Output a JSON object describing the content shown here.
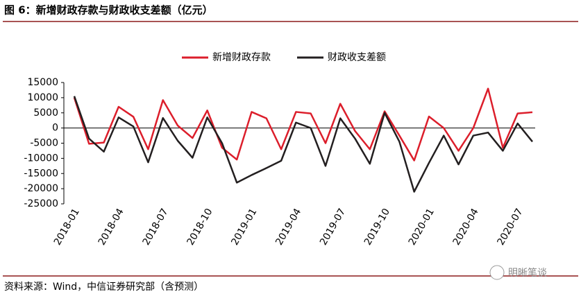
{
  "chart_data": {
    "type": "line",
    "title": "图 6：新增财政存款与财政收支差额（亿元）",
    "source": "资料来源：Wind，中信证券研究部（含预测）",
    "watermark": "明晰笔谈",
    "categories": [
      "2018-01",
      null,
      null,
      "2018-04",
      null,
      null,
      "2018-07",
      null,
      null,
      "2018-10",
      null,
      null,
      "2019-01",
      null,
      null,
      "2019-04",
      null,
      null,
      "2019-07",
      null,
      null,
      "2019-10",
      null,
      null,
      "2020-01",
      null,
      null,
      "2020-04",
      null,
      null,
      "2020-07",
      null
    ],
    "series": [
      {
        "name": "新增财政存款",
        "color": "#dc1e2b",
        "values": [
          10000,
          -5200,
          -4800,
          7000,
          3700,
          -7000,
          9200,
          800,
          -3300,
          5800,
          -6500,
          -10400,
          5300,
          3200,
          -7000,
          5300,
          4800,
          -5000,
          8000,
          -1000,
          -7000,
          5500,
          -2500,
          -10700,
          3800,
          0,
          -7500,
          0,
          13000,
          -6500,
          4800,
          5200
        ]
      },
      {
        "name": "财政收支差额",
        "color": "#231f20",
        "values": [
          10500,
          -3500,
          -7800,
          3500,
          500,
          -11300,
          3300,
          -4200,
          -9800,
          3500,
          -5000,
          -18000,
          -15500,
          -13200,
          -10800,
          1800,
          0,
          -12500,
          3200,
          -3500,
          -11800,
          5000,
          -4500,
          -21000,
          -11500,
          -2500,
          -12000,
          -2500,
          -1500,
          -7500,
          1500,
          -4500
        ]
      }
    ],
    "ylim": [
      -25000,
      15000
    ],
    "yticks": [
      15000,
      10000,
      5000,
      0,
      -5000,
      -10000,
      -15000,
      -20000,
      -25000
    ],
    "legend": "top"
  }
}
